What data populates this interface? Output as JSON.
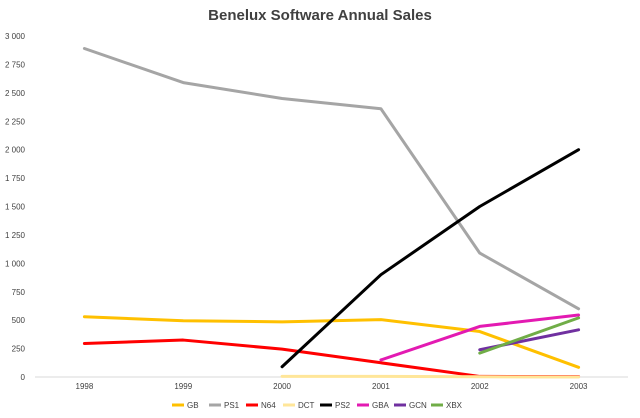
{
  "chart_data": {
    "type": "line",
    "title": "Benelux Software Annual Sales",
    "xlabel": "",
    "ylabel": "",
    "categories": [
      "1998",
      "1999",
      "2000",
      "2001",
      "2002",
      "2003"
    ],
    "ylim": [
      0,
      3000
    ],
    "y_ticks": [
      0,
      250,
      500,
      750,
      1000,
      1250,
      1500,
      1750,
      2000,
      2250,
      2500,
      2750,
      3000
    ],
    "y_tick_labels": [
      "0",
      "250",
      "500",
      "750",
      "1 000",
      "1 250",
      "1 500",
      "1 750",
      "2 000",
      "2 250",
      "2 500",
      "2 750",
      "3 000"
    ],
    "grid": false,
    "legend_position": "bottom",
    "series": [
      {
        "name": "GB",
        "color": "#FFC000",
        "values": [
          530,
          495,
          485,
          505,
          400,
          85
        ]
      },
      {
        "name": "PS1",
        "color": "#A5A5A5",
        "values": [
          2890,
          2590,
          2450,
          2360,
          1090,
          600
        ]
      },
      {
        "name": "N64",
        "color": "#FF0000",
        "values": [
          295,
          325,
          245,
          125,
          5,
          3
        ]
      },
      {
        "name": "DCT",
        "color": "#FFE699",
        "values": [
          null,
          null,
          5,
          5,
          2,
          0
        ]
      },
      {
        "name": "PS2",
        "color": "#000000",
        "values": [
          null,
          null,
          90,
          900,
          1500,
          2000
        ]
      },
      {
        "name": "GBA",
        "color": "#E31AB2",
        "values": [
          null,
          null,
          null,
          150,
          445,
          545
        ]
      },
      {
        "name": "GCN",
        "color": "#7030A0",
        "values": [
          null,
          null,
          null,
          null,
          240,
          415
        ]
      },
      {
        "name": "XBX",
        "color": "#70AD47",
        "values": [
          null,
          null,
          null,
          null,
          210,
          520
        ]
      }
    ]
  }
}
